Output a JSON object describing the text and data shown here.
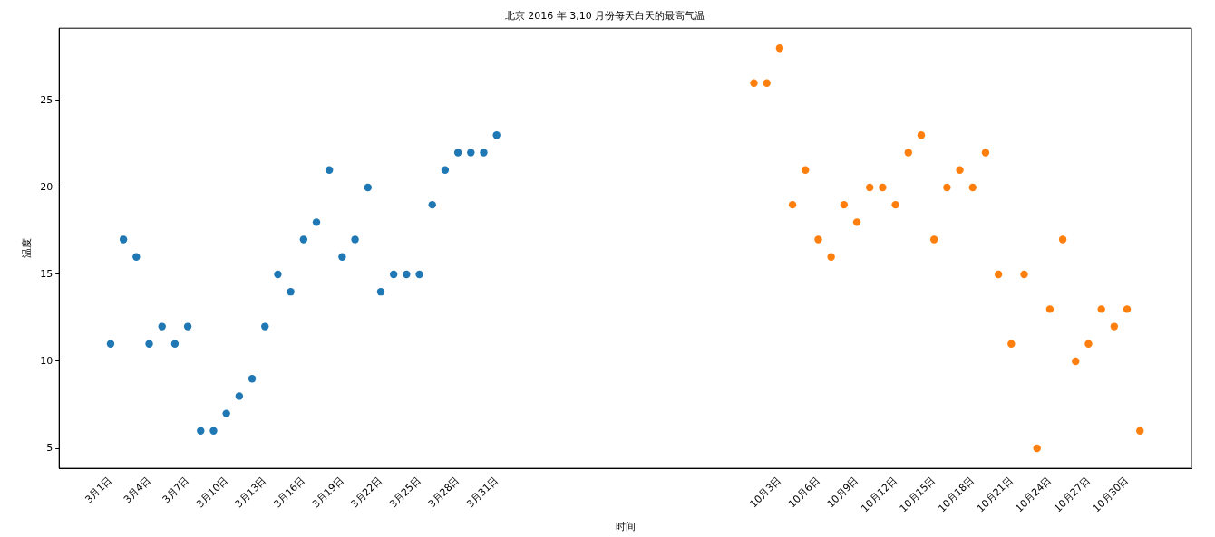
{
  "chart_data": {
    "type": "scatter",
    "title": "北京 2016 年 3,10 月份每天白天的最高气温",
    "xlabel": "时间",
    "ylabel": "温度",
    "marker": "circle",
    "ylim": [
      3.85,
      29.15
    ],
    "yticks": [
      5,
      10,
      15,
      20,
      25
    ],
    "categories": [
      "3月1日",
      null,
      null,
      "3月4日",
      null,
      null,
      "3月7日",
      null,
      null,
      "3月10日",
      null,
      null,
      "3月13日",
      null,
      null,
      "3月16日",
      null,
      null,
      "3月19日",
      null,
      null,
      "3月22日",
      null,
      null,
      "3月25日",
      null,
      null,
      "3月28日",
      null,
      null,
      "3月31日",
      null,
      null,
      null,
      null,
      null,
      null,
      null,
      null,
      null,
      null,
      null,
      null,
      null,
      null,
      null,
      null,
      null,
      null,
      null,
      null,
      null,
      "10月3日",
      null,
      null,
      "10月6日",
      null,
      null,
      "10月9日",
      null,
      null,
      "10月12日",
      null,
      null,
      "10月15日",
      null,
      null,
      "10月18日",
      null,
      null,
      "10月21日",
      null,
      null,
      "10月24日",
      null,
      null,
      "10月27日",
      null,
      null,
      "10月30日",
      null
    ],
    "series": [
      {
        "color": "#1f77b4",
        "values": [
          11,
          17,
          16,
          11,
          12,
          11,
          12,
          6,
          6,
          7,
          8,
          9,
          12,
          15,
          14,
          17,
          18,
          21,
          16,
          17,
          20,
          14,
          15,
          15,
          15,
          19,
          21,
          22,
          22,
          22,
          23,
          null,
          null,
          null,
          null,
          null,
          null,
          null,
          null,
          null,
          null,
          null,
          null,
          null,
          null,
          null,
          null,
          null,
          null,
          null,
          null,
          null,
          null,
          null,
          null,
          null,
          null,
          null,
          null,
          null,
          null,
          null,
          null,
          null,
          null,
          null,
          null,
          null,
          null,
          null,
          null,
          null,
          null,
          null,
          null,
          null,
          null,
          null,
          null,
          null,
          null
        ]
      },
      {
        "color": "#ff7f0e",
        "values": [
          null,
          null,
          null,
          null,
          null,
          null,
          null,
          null,
          null,
          null,
          null,
          null,
          null,
          null,
          null,
          null,
          null,
          null,
          null,
          null,
          null,
          null,
          null,
          null,
          null,
          null,
          null,
          null,
          null,
          null,
          null,
          null,
          null,
          null,
          null,
          null,
          null,
          null,
          null,
          null,
          null,
          null,
          null,
          null,
          null,
          null,
          null,
          null,
          null,
          null,
          26,
          26,
          28,
          19,
          21,
          17,
          16,
          19,
          18,
          20,
          20,
          19,
          22,
          23,
          17,
          20,
          21,
          20,
          22,
          15,
          11,
          15,
          5,
          13,
          17,
          10,
          11,
          13,
          12,
          13,
          6
        ]
      }
    ]
  }
}
